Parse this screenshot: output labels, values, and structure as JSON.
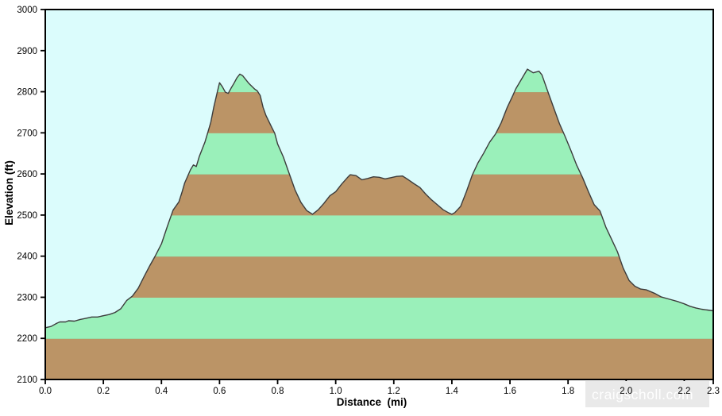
{
  "chart": {
    "watermark_text": "craigscholl.com",
    "colors": {
      "page_background": "#ffffff",
      "plot_background": "#dbfcfc",
      "band_green": "#9af0ba",
      "band_brown": "#bb9466",
      "band_edge_line": "#9aa878",
      "profile_line": "#3c3c3c",
      "axis": "#000000",
      "watermark_box": "#e9e9e9",
      "watermark_text_color": "#fdfdfd",
      "tick_label": "#000000"
    }
  },
  "chart_data": {
    "type": "area",
    "title": "",
    "xlabel": "Distance  (mi)",
    "ylabel": "Elevation (ft)",
    "xlim": [
      0,
      2.3
    ],
    "ylim": [
      2100,
      3000
    ],
    "x_ticks": [
      0.0,
      0.2,
      0.4,
      0.6,
      0.8,
      1.0,
      1.2,
      1.4,
      1.6,
      1.8,
      2.0,
      2.2,
      2.3
    ],
    "y_ticks": [
      2100,
      2200,
      2300,
      2400,
      2500,
      2600,
      2700,
      2800,
      2900,
      3000
    ],
    "grid": false,
    "legend": false,
    "band_interval_ft": 100,
    "band_order_from_bottom": [
      "brown",
      "green"
    ],
    "band_edge_at_top_of_brown": true,
    "series": [
      {
        "name": "elevation_profile",
        "points": [
          [
            0.0,
            2226
          ],
          [
            0.02,
            2229
          ],
          [
            0.04,
            2237
          ],
          [
            0.05,
            2240
          ],
          [
            0.07,
            2240
          ],
          [
            0.08,
            2243
          ],
          [
            0.1,
            2242
          ],
          [
            0.12,
            2246
          ],
          [
            0.14,
            2249
          ],
          [
            0.16,
            2252
          ],
          [
            0.18,
            2252
          ],
          [
            0.2,
            2255
          ],
          [
            0.22,
            2258
          ],
          [
            0.24,
            2263
          ],
          [
            0.26,
            2272
          ],
          [
            0.28,
            2292
          ],
          [
            0.3,
            2303
          ],
          [
            0.32,
            2322
          ],
          [
            0.34,
            2350
          ],
          [
            0.36,
            2377
          ],
          [
            0.38,
            2402
          ],
          [
            0.4,
            2430
          ],
          [
            0.42,
            2472
          ],
          [
            0.44,
            2512
          ],
          [
            0.46,
            2532
          ],
          [
            0.47,
            2554
          ],
          [
            0.48,
            2578
          ],
          [
            0.5,
            2610
          ],
          [
            0.51,
            2622
          ],
          [
            0.52,
            2618
          ],
          [
            0.53,
            2642
          ],
          [
            0.55,
            2678
          ],
          [
            0.56,
            2702
          ],
          [
            0.57,
            2726
          ],
          [
            0.58,
            2762
          ],
          [
            0.59,
            2792
          ],
          [
            0.6,
            2822
          ],
          [
            0.61,
            2812
          ],
          [
            0.62,
            2799
          ],
          [
            0.63,
            2796
          ],
          [
            0.64,
            2809
          ],
          [
            0.65,
            2821
          ],
          [
            0.66,
            2834
          ],
          [
            0.67,
            2843
          ],
          [
            0.68,
            2839
          ],
          [
            0.7,
            2821
          ],
          [
            0.72,
            2807
          ],
          [
            0.73,
            2802
          ],
          [
            0.74,
            2791
          ],
          [
            0.75,
            2762
          ],
          [
            0.76,
            2742
          ],
          [
            0.78,
            2713
          ],
          [
            0.79,
            2699
          ],
          [
            0.8,
            2673
          ],
          [
            0.82,
            2641
          ],
          [
            0.84,
            2601
          ],
          [
            0.85,
            2581
          ],
          [
            0.86,
            2561
          ],
          [
            0.88,
            2531
          ],
          [
            0.9,
            2511
          ],
          [
            0.92,
            2502
          ],
          [
            0.94,
            2513
          ],
          [
            0.96,
            2529
          ],
          [
            0.98,
            2547
          ],
          [
            1.0,
            2557
          ],
          [
            1.02,
            2575
          ],
          [
            1.04,
            2591
          ],
          [
            1.05,
            2598
          ],
          [
            1.07,
            2596
          ],
          [
            1.09,
            2586
          ],
          [
            1.11,
            2589
          ],
          [
            1.13,
            2593
          ],
          [
            1.15,
            2592
          ],
          [
            1.17,
            2588
          ],
          [
            1.19,
            2591
          ],
          [
            1.21,
            2594
          ],
          [
            1.23,
            2595
          ],
          [
            1.25,
            2586
          ],
          [
            1.27,
            2576
          ],
          [
            1.29,
            2567
          ],
          [
            1.31,
            2551
          ],
          [
            1.33,
            2537
          ],
          [
            1.35,
            2525
          ],
          [
            1.37,
            2513
          ],
          [
            1.39,
            2505
          ],
          [
            1.4,
            2502
          ],
          [
            1.41,
            2506
          ],
          [
            1.43,
            2521
          ],
          [
            1.45,
            2557
          ],
          [
            1.47,
            2597
          ],
          [
            1.49,
            2627
          ],
          [
            1.51,
            2651
          ],
          [
            1.53,
            2677
          ],
          [
            1.55,
            2697
          ],
          [
            1.57,
            2725
          ],
          [
            1.59,
            2761
          ],
          [
            1.61,
            2791
          ],
          [
            1.62,
            2807
          ],
          [
            1.64,
            2831
          ],
          [
            1.66,
            2855
          ],
          [
            1.68,
            2846
          ],
          [
            1.7,
            2850
          ],
          [
            1.71,
            2841
          ],
          [
            1.73,
            2801
          ],
          [
            1.75,
            2762
          ],
          [
            1.77,
            2723
          ],
          [
            1.79,
            2691
          ],
          [
            1.81,
            2657
          ],
          [
            1.83,
            2621
          ],
          [
            1.85,
            2591
          ],
          [
            1.87,
            2557
          ],
          [
            1.89,
            2525
          ],
          [
            1.91,
            2510
          ],
          [
            1.93,
            2471
          ],
          [
            1.95,
            2441
          ],
          [
            1.97,
            2411
          ],
          [
            1.99,
            2371
          ],
          [
            2.01,
            2341
          ],
          [
            2.03,
            2327
          ],
          [
            2.05,
            2320
          ],
          [
            2.07,
            2318
          ],
          [
            2.1,
            2309
          ],
          [
            2.12,
            2301
          ],
          [
            2.15,
            2295
          ],
          [
            2.18,
            2289
          ],
          [
            2.2,
            2284
          ],
          [
            2.22,
            2278
          ],
          [
            2.24,
            2274
          ],
          [
            2.26,
            2271
          ],
          [
            2.28,
            2269
          ],
          [
            2.3,
            2267
          ]
        ]
      }
    ]
  }
}
